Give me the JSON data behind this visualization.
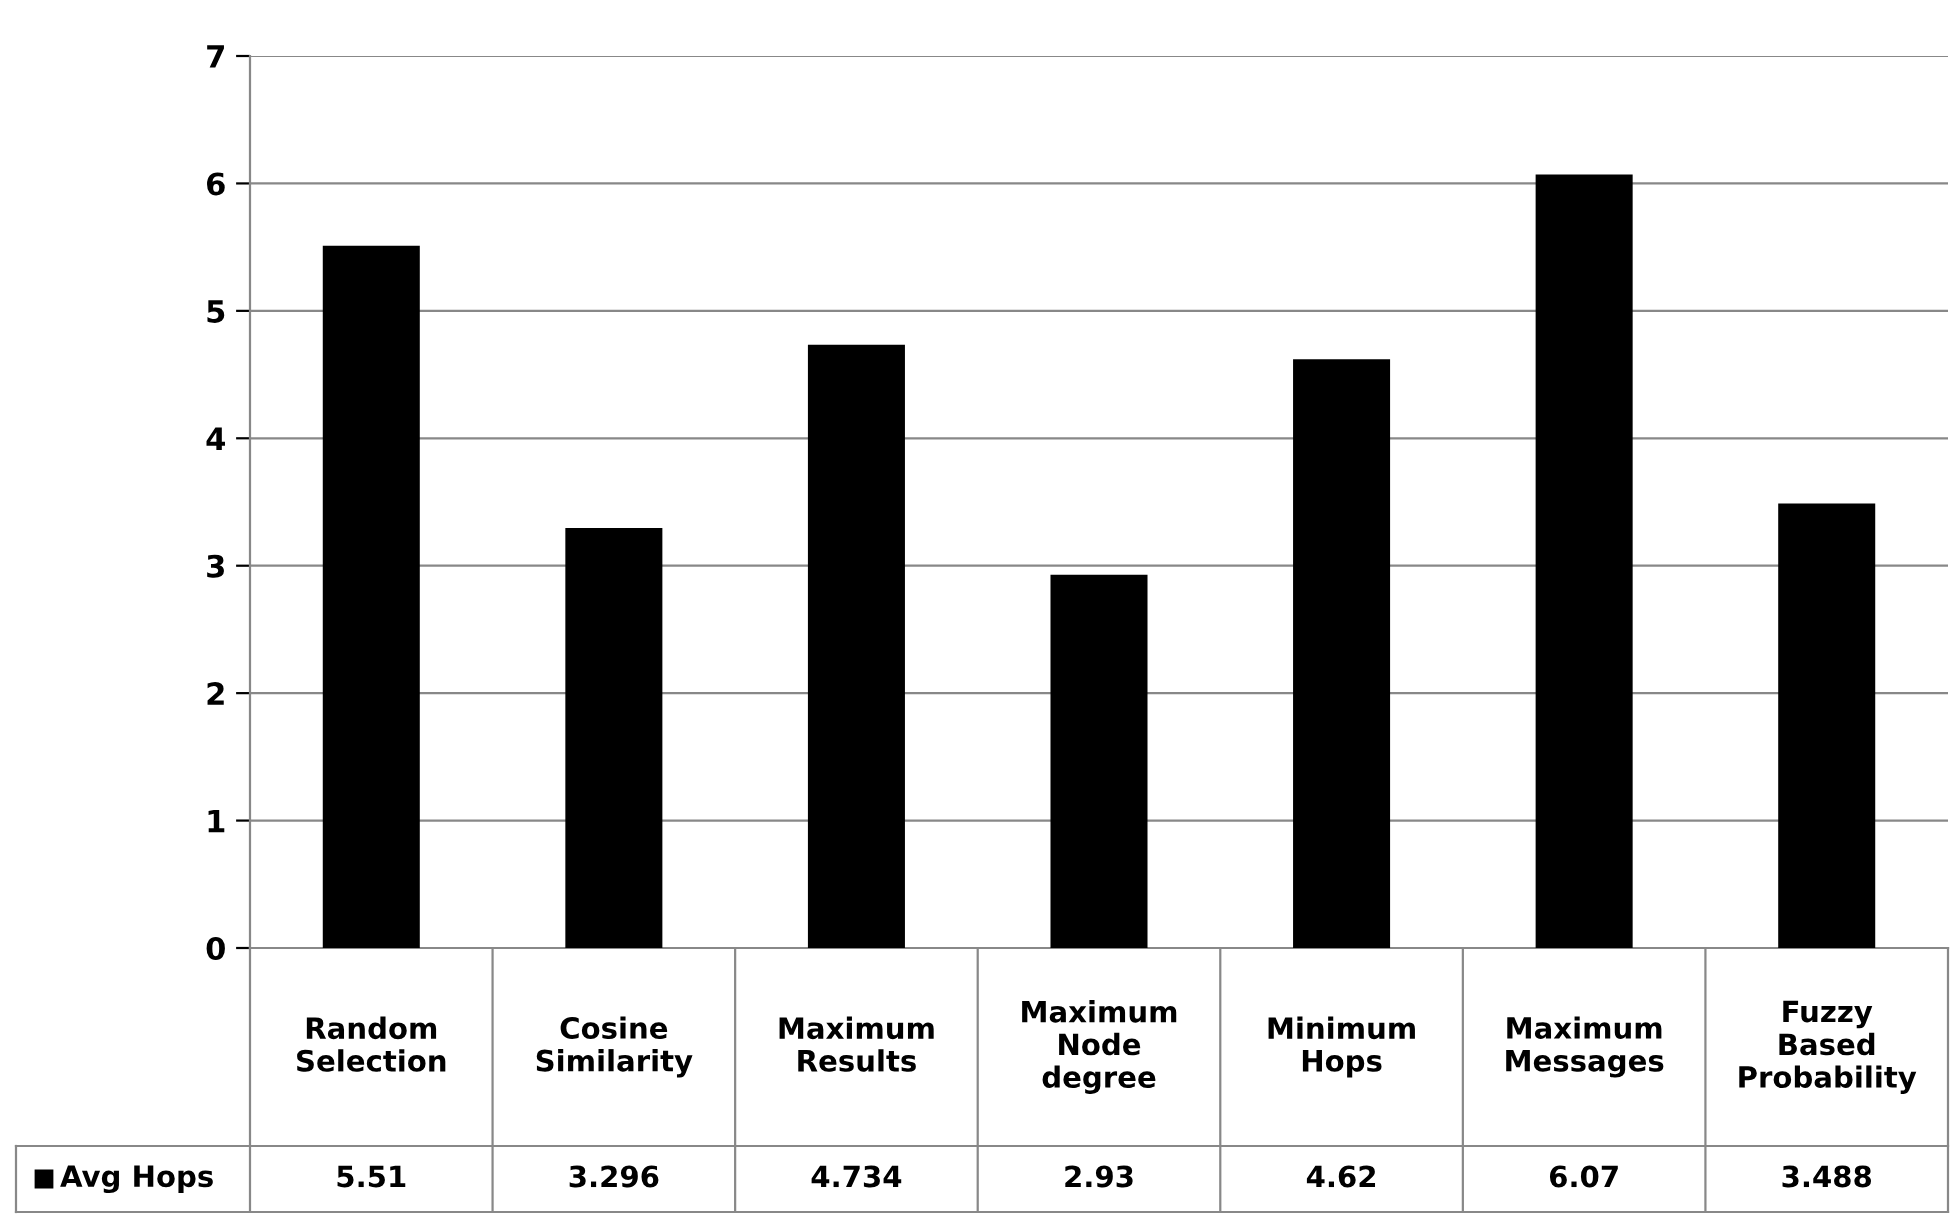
{
  "chart_data": {
    "type": "bar",
    "categories": [
      "Random\nSelection",
      "Cosine\nSimilarity",
      "Maximum\nResults",
      "Maximum\nNode\ndegree",
      "Minimum\nHops",
      "Maximum\nMessages",
      "Fuzzy\nBased\nProbability"
    ],
    "series": [
      {
        "name": "Avg Hops",
        "color": "#000000",
        "values": [
          5.51,
          3.296,
          4.734,
          2.93,
          4.62,
          6.07,
          3.488
        ]
      }
    ],
    "ylim": [
      0,
      7
    ],
    "yticks": [
      0,
      1,
      2,
      3,
      4,
      5,
      6,
      7
    ],
    "grid": "y",
    "legend": "bottom",
    "data_labels": true
  }
}
